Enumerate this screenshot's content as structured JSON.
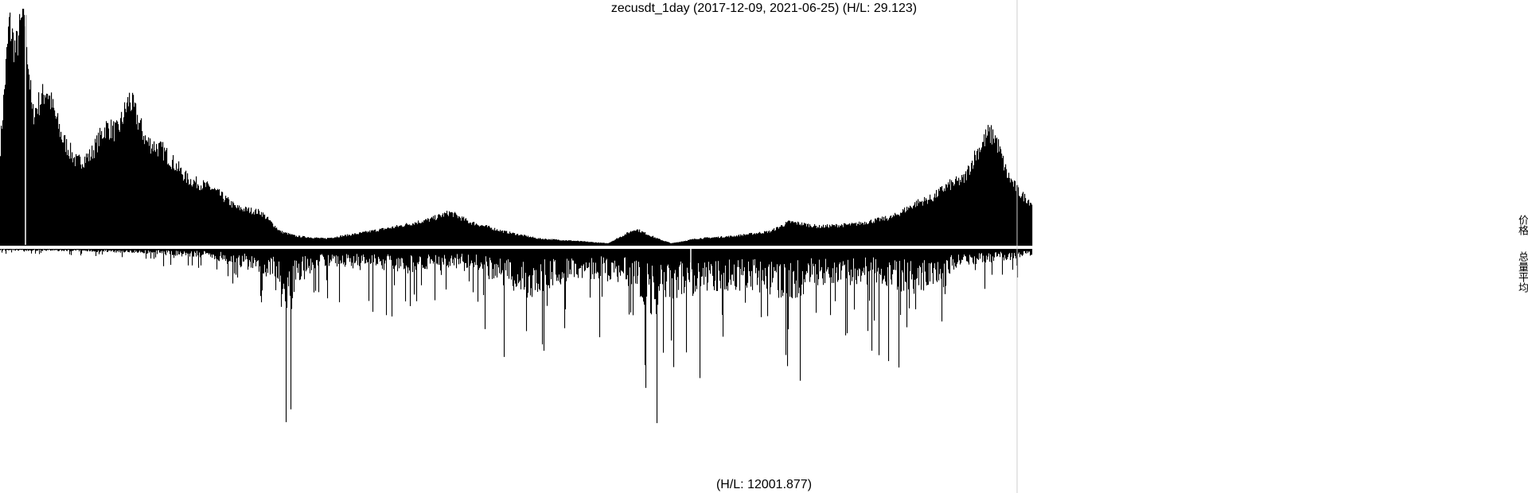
{
  "header": {
    "title": "zecusdt_1day (2017-12-09, 2021-06-25) (H/L: 29.123)"
  },
  "footer": {
    "subtitle": "(H/L: 12001.877)"
  },
  "side_labels": {
    "price": "价格",
    "volume": "总量平均"
  },
  "colors": {
    "bars": "#000000",
    "background": "#ffffff",
    "separator": "#ffffff",
    "border": "#cccccc"
  },
  "chart_data": [
    {
      "type": "area",
      "title": "zecusdt_1day (2017-12-09, 2021-06-25) (H/L: 29.123)",
      "x_range": [
        "2017-12-09",
        "2021-06-25"
      ],
      "y_range": [
        0,
        1
      ],
      "series": [
        {
          "x": [
            "2017-12-09",
            "2017-12-20",
            "2017-12-28",
            "2018-01-08",
            "2018-01-18",
            "2018-02-05",
            "2018-02-25",
            "2018-03-15",
            "2018-04-01",
            "2018-04-20",
            "2018-05-05",
            "2018-05-20",
            "2018-06-10",
            "2018-07-01",
            "2018-08-01",
            "2018-09-01",
            "2018-10-01",
            "2018-11-01",
            "2018-11-25",
            "2018-12-15",
            "2019-01-20",
            "2019-03-01",
            "2019-04-20",
            "2019-06-01",
            "2019-06-26",
            "2019-07-20",
            "2019-09-01",
            "2019-10-15",
            "2019-12-01",
            "2020-01-10",
            "2020-02-14",
            "2020-03-12",
            "2020-03-30",
            "2020-05-01",
            "2020-06-15",
            "2020-08-01",
            "2020-08-25",
            "2020-10-01",
            "2020-11-15",
            "2021-01-01",
            "2021-02-01",
            "2021-02-20",
            "2021-03-10",
            "2021-04-01",
            "2021-04-15",
            "2021-05-01",
            "2021-05-10",
            "2021-05-25",
            "2021-06-10",
            "2021-06-25"
          ],
          "values": [
            0.42,
            0.94,
            0.82,
            1.0,
            0.55,
            0.66,
            0.45,
            0.35,
            0.38,
            0.5,
            0.48,
            0.62,
            0.44,
            0.4,
            0.28,
            0.24,
            0.16,
            0.14,
            0.06,
            0.04,
            0.03,
            0.05,
            0.08,
            0.11,
            0.14,
            0.1,
            0.06,
            0.03,
            0.02,
            0.01,
            0.07,
            0.03,
            0.01,
            0.03,
            0.04,
            0.06,
            0.1,
            0.08,
            0.09,
            0.12,
            0.18,
            0.2,
            0.25,
            0.28,
            0.38,
            0.47,
            0.46,
            0.3,
            0.22,
            0.18
          ]
        }
      ]
    },
    {
      "type": "bar",
      "title": "(H/L: 12001.877)",
      "x_range": [
        "2017-12-09",
        "2021-06-25"
      ],
      "y_range": [
        0,
        1
      ],
      "series": [
        {
          "x": [
            "2017-12-09",
            "2018-03-01",
            "2018-06-01",
            "2018-09-01",
            "2018-11-15",
            "2018-12-05",
            "2018-12-15",
            "2019-01-15",
            "2019-03-01",
            "2019-05-01",
            "2019-06-15",
            "2019-08-01",
            "2019-10-01",
            "2019-12-01",
            "2020-02-01",
            "2020-03-12",
            "2020-03-25",
            "2020-05-01",
            "2020-07-01",
            "2020-08-25",
            "2020-10-01",
            "2020-12-01",
            "2021-02-01",
            "2021-04-01",
            "2021-06-25"
          ],
          "values": [
            0.02,
            0.03,
            0.05,
            0.12,
            0.35,
            1.0,
            0.45,
            0.2,
            0.25,
            0.3,
            0.2,
            0.3,
            0.6,
            0.35,
            0.4,
            0.88,
            0.65,
            0.55,
            0.5,
            0.62,
            0.45,
            0.42,
            0.55,
            0.2,
            0.1
          ]
        }
      ]
    }
  ]
}
